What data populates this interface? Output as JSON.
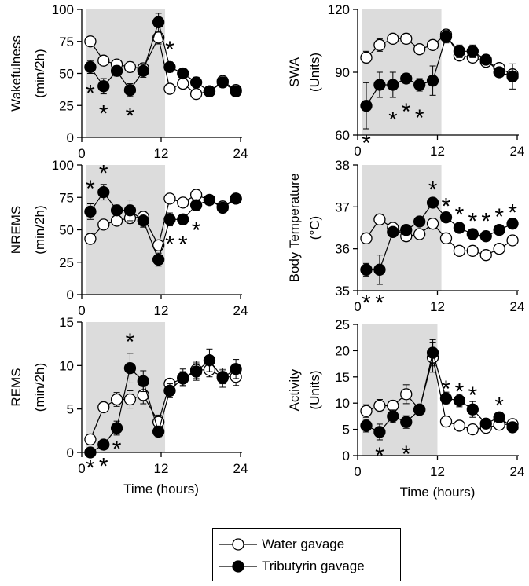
{
  "colors": {
    "shade": "#dcdcdc",
    "axis": "#000000",
    "water_fill": "#ffffff",
    "tributyrin_fill": "#000000"
  },
  "legend": {
    "water": "Water gavage",
    "tributyrin": "Tributyrin gavage"
  },
  "chart_data": [
    {
      "id": "wakefulness",
      "type": "line",
      "ylabel_lines": [
        "Wakefulness",
        "(min/2h)"
      ],
      "yticks": [
        "0",
        "25",
        "50",
        "75",
        "100"
      ],
      "ylim": [
        0,
        100
      ],
      "xticks": [
        "0",
        "12",
        "24"
      ],
      "xlim": [
        0,
        24
      ],
      "xlabel": "",
      "shade": [
        0.6,
        12.6
      ],
      "x": [
        1.3,
        3.3,
        5.3,
        7.3,
        9.3,
        11.6,
        13.3,
        15.3,
        17.3,
        19.3,
        21.3,
        23.3
      ],
      "series": [
        {
          "name": "Water gavage",
          "values": [
            75,
            60,
            57,
            55,
            54,
            78,
            38,
            42,
            34,
            36,
            44,
            37
          ],
          "err": [
            2,
            3,
            3,
            4,
            4,
            5,
            2,
            2,
            2,
            2,
            3,
            2
          ]
        },
        {
          "name": "Tributyrin gavage",
          "values": [
            55,
            40,
            52,
            37,
            52,
            90,
            55,
            50,
            43,
            36,
            43,
            36
          ],
          "err": [
            5,
            6,
            4,
            5,
            5,
            7,
            4,
            4,
            4,
            3,
            3,
            3
          ]
        }
      ],
      "stars": [
        {
          "x": 1.3,
          "y": 36,
          "text": "*"
        },
        {
          "x": 3.3,
          "y": 20,
          "text": "*"
        },
        {
          "x": 7.3,
          "y": 18,
          "text": "*"
        },
        {
          "x": 13.3,
          "y": 70,
          "text": "*"
        }
      ]
    },
    {
      "id": "swa",
      "type": "line",
      "ylabel_lines": [
        "SWA",
        "(Units)"
      ],
      "yticks": [
        "60",
        "90",
        "120"
      ],
      "ylim": [
        60,
        120
      ],
      "xticks": [
        "0",
        "12",
        "24"
      ],
      "xlim": [
        0,
        24
      ],
      "xlabel": "",
      "shade": [
        0.6,
        12.6
      ],
      "x": [
        1.3,
        3.3,
        5.3,
        7.3,
        9.3,
        11.3,
        13.3,
        15.3,
        17.3,
        19.3,
        21.3,
        23.3
      ],
      "series": [
        {
          "name": "Water gavage",
          "values": [
            97,
            103,
            106,
            106,
            101,
            103,
            108,
            98,
            97,
            95,
            92,
            89
          ],
          "err": [
            3,
            3,
            2,
            2,
            2,
            2,
            2,
            2,
            2,
            1,
            1,
            1
          ]
        },
        {
          "name": "Tributyrin gavage",
          "values": [
            74,
            84,
            84,
            87,
            84,
            86,
            107,
            100,
            100,
            96,
            90,
            88
          ],
          "err": [
            11,
            6,
            6,
            2,
            3,
            7,
            3,
            3,
            3,
            2,
            2,
            6
          ]
        }
      ],
      "stars": [
        {
          "x": 1.3,
          "y": 57,
          "text": "*"
        },
        {
          "x": 5.3,
          "y": 68,
          "text": "*"
        },
        {
          "x": 7.3,
          "y": 72,
          "text": "*"
        },
        {
          "x": 9.3,
          "y": 69,
          "text": "*"
        }
      ]
    },
    {
      "id": "nrems",
      "type": "line",
      "ylabel_lines": [
        "NREMS",
        "(min/2h)"
      ],
      "yticks": [
        "0",
        "25",
        "50",
        "75",
        "100"
      ],
      "ylim": [
        0,
        100
      ],
      "xticks": [
        "0",
        "12",
        "24"
      ],
      "xlim": [
        0,
        24
      ],
      "xlabel": "",
      "shade": [
        0.6,
        12.6
      ],
      "x": [
        1.3,
        3.3,
        5.3,
        7.3,
        9.3,
        11.6,
        13.3,
        15.3,
        17.3,
        19.3,
        21.3,
        23.3
      ],
      "series": [
        {
          "name": "Water gavage",
          "values": [
            43,
            54,
            57,
            59,
            60,
            38,
            74,
            71,
            77,
            73,
            68,
            74
          ],
          "err": [
            2,
            3,
            3,
            4,
            4,
            3,
            3,
            3,
            2,
            2,
            3,
            2
          ]
        },
        {
          "name": "Tributyrin gavage",
          "values": [
            64,
            79,
            65,
            65,
            57,
            27,
            58,
            58,
            69,
            73,
            67,
            74
          ],
          "err": [
            6,
            6,
            4,
            8,
            5,
            5,
            5,
            4,
            4,
            3,
            3,
            3
          ]
        }
      ],
      "stars": [
        {
          "x": 1.3,
          "y": 83,
          "text": "*"
        },
        {
          "x": 3.3,
          "y": 95,
          "text": "*"
        },
        {
          "x": 13.3,
          "y": 40,
          "text": "*"
        },
        {
          "x": 15.3,
          "y": 40,
          "text": "*"
        },
        {
          "x": 17.3,
          "y": 51,
          "text": "*"
        }
      ]
    },
    {
      "id": "body-temp",
      "type": "line",
      "ylabel_lines": [
        "Body Temperature",
        "(°C)"
      ],
      "yticks": [
        "35",
        "36",
        "37",
        "38"
      ],
      "ylim": [
        35,
        38
      ],
      "xticks": [
        "0",
        "12",
        "24"
      ],
      "xlim": [
        0,
        24
      ],
      "xlabel": "",
      "shade": [
        0.6,
        12.6
      ],
      "x": [
        1.3,
        3.3,
        5.3,
        7.3,
        9.3,
        11.3,
        13.3,
        15.3,
        17.3,
        19.3,
        21.3,
        23.3
      ],
      "series": [
        {
          "name": "Water gavage",
          "values": [
            36.25,
            36.7,
            36.5,
            36.3,
            36.35,
            36.6,
            36.25,
            35.95,
            35.95,
            35.85,
            36.0,
            36.2
          ],
          "err": [
            0.1,
            0.05,
            0.05,
            0.1,
            0.05,
            0.08,
            0.08,
            0.08,
            0.05,
            0.05,
            0.05,
            0.05
          ]
        },
        {
          "name": "Tributyrin gavage",
          "values": [
            35.5,
            35.5,
            36.4,
            36.45,
            36.65,
            37.1,
            36.75,
            36.5,
            36.35,
            36.3,
            36.45,
            36.6
          ],
          "err": [
            0.15,
            0.35,
            0.1,
            0.05,
            0.05,
            0.1,
            0.08,
            0.05,
            0.05,
            0.05,
            0.05,
            0.05
          ]
        }
      ],
      "stars": [
        {
          "x": 1.3,
          "y": 34.75,
          "text": "*"
        },
        {
          "x": 3.3,
          "y": 34.75,
          "text": "*"
        },
        {
          "x": 11.3,
          "y": 37.45,
          "text": "*"
        },
        {
          "x": 13.3,
          "y": 37.05,
          "text": "*"
        },
        {
          "x": 15.3,
          "y": 36.85,
          "text": "*"
        },
        {
          "x": 17.3,
          "y": 36.7,
          "text": "*"
        },
        {
          "x": 19.3,
          "y": 36.7,
          "text": "*"
        },
        {
          "x": 21.3,
          "y": 36.8,
          "text": "*"
        },
        {
          "x": 23.3,
          "y": 36.9,
          "text": "*"
        }
      ]
    },
    {
      "id": "rems",
      "type": "line",
      "ylabel_lines": [
        "REMS",
        "(min/2h)"
      ],
      "yticks": [
        "0",
        "5",
        "10",
        "15"
      ],
      "ylim": [
        0,
        15
      ],
      "xticks": [
        "0",
        "12",
        "24"
      ],
      "xlim": [
        0,
        24
      ],
      "xlabel": "Time (hours)",
      "shade": [
        0.6,
        12.6
      ],
      "x": [
        1.3,
        3.3,
        5.3,
        7.3,
        9.3,
        11.6,
        13.3,
        15.3,
        17.3,
        19.3,
        21.3,
        23.3
      ],
      "series": [
        {
          "name": "Water gavage",
          "values": [
            1.5,
            5.2,
            6.1,
            6.1,
            6.6,
            3.5,
            7.9,
            8.5,
            9.5,
            9.5,
            8.7,
            8.7
          ],
          "err": [
            0.3,
            0.5,
            0.8,
            1.0,
            1.0,
            0.8,
            0.6,
            0.8,
            1.0,
            0.8,
            0.8,
            1.0
          ]
        },
        {
          "name": "Tributyrin gavage",
          "values": [
            0.0,
            0.9,
            2.8,
            9.7,
            8.2,
            2.4,
            7.1,
            8.6,
            9.3,
            10.6,
            8.6,
            9.6
          ],
          "err": [
            0.2,
            0.4,
            0.8,
            1.7,
            1.2,
            0.6,
            0.8,
            1.0,
            1.0,
            1.3,
            1.1,
            1.1
          ]
        }
      ],
      "stars": [
        {
          "x": 1.3,
          "y": -1.6,
          "text": "*"
        },
        {
          "x": 3.3,
          "y": -1.4,
          "text": "*"
        },
        {
          "x": 5.3,
          "y": 0.6,
          "text": "*"
        },
        {
          "x": 7.3,
          "y": 12.9,
          "text": "*"
        }
      ]
    },
    {
      "id": "activity",
      "type": "line",
      "ylabel_lines": [
        "Activity",
        "(Units)"
      ],
      "yticks": [
        "0",
        "5",
        "10",
        "15",
        "20",
        "25"
      ],
      "ylim": [
        0,
        25
      ],
      "xticks": [
        "0",
        "12",
        "24"
      ],
      "xlim": [
        0,
        24
      ],
      "xlabel": "Time (hours)",
      "shade": [
        0.6,
        12.0
      ],
      "x": [
        1.3,
        3.3,
        5.3,
        7.3,
        9.3,
        11.3,
        13.3,
        15.3,
        17.3,
        19.3,
        21.3,
        23.3
      ],
      "series": [
        {
          "name": "Water gavage",
          "values": [
            8.5,
            9.5,
            9.5,
            11.7,
            8.8,
            18.7,
            6.5,
            5.7,
            5.0,
            5.3,
            5.9,
            6.0
          ],
          "err": [
            1.2,
            1.2,
            1.0,
            1.8,
            0.8,
            2.8,
            1.0,
            0.5,
            0.4,
            0.6,
            0.8,
            0.6
          ]
        },
        {
          "name": "Tributyrin gavage",
          "values": [
            5.7,
            4.5,
            7.5,
            6.4,
            8.7,
            19.6,
            10.9,
            10.5,
            8.8,
            6.1,
            7.3,
            5.4
          ],
          "err": [
            1.2,
            1.5,
            1.2,
            1.2,
            0.8,
            2.5,
            1.2,
            1.2,
            1.5,
            0.8,
            0.6,
            0.8
          ]
        }
      ],
      "stars": [
        {
          "x": 3.3,
          "y": 0.3,
          "text": "*"
        },
        {
          "x": 7.3,
          "y": 0.6,
          "text": "*"
        },
        {
          "x": 13.3,
          "y": 13.0,
          "text": "*"
        },
        {
          "x": 15.3,
          "y": 12.5,
          "text": "*"
        },
        {
          "x": 17.3,
          "y": 11.8,
          "text": "*"
        },
        {
          "x": 21.3,
          "y": 9.8,
          "text": "*"
        }
      ]
    }
  ]
}
